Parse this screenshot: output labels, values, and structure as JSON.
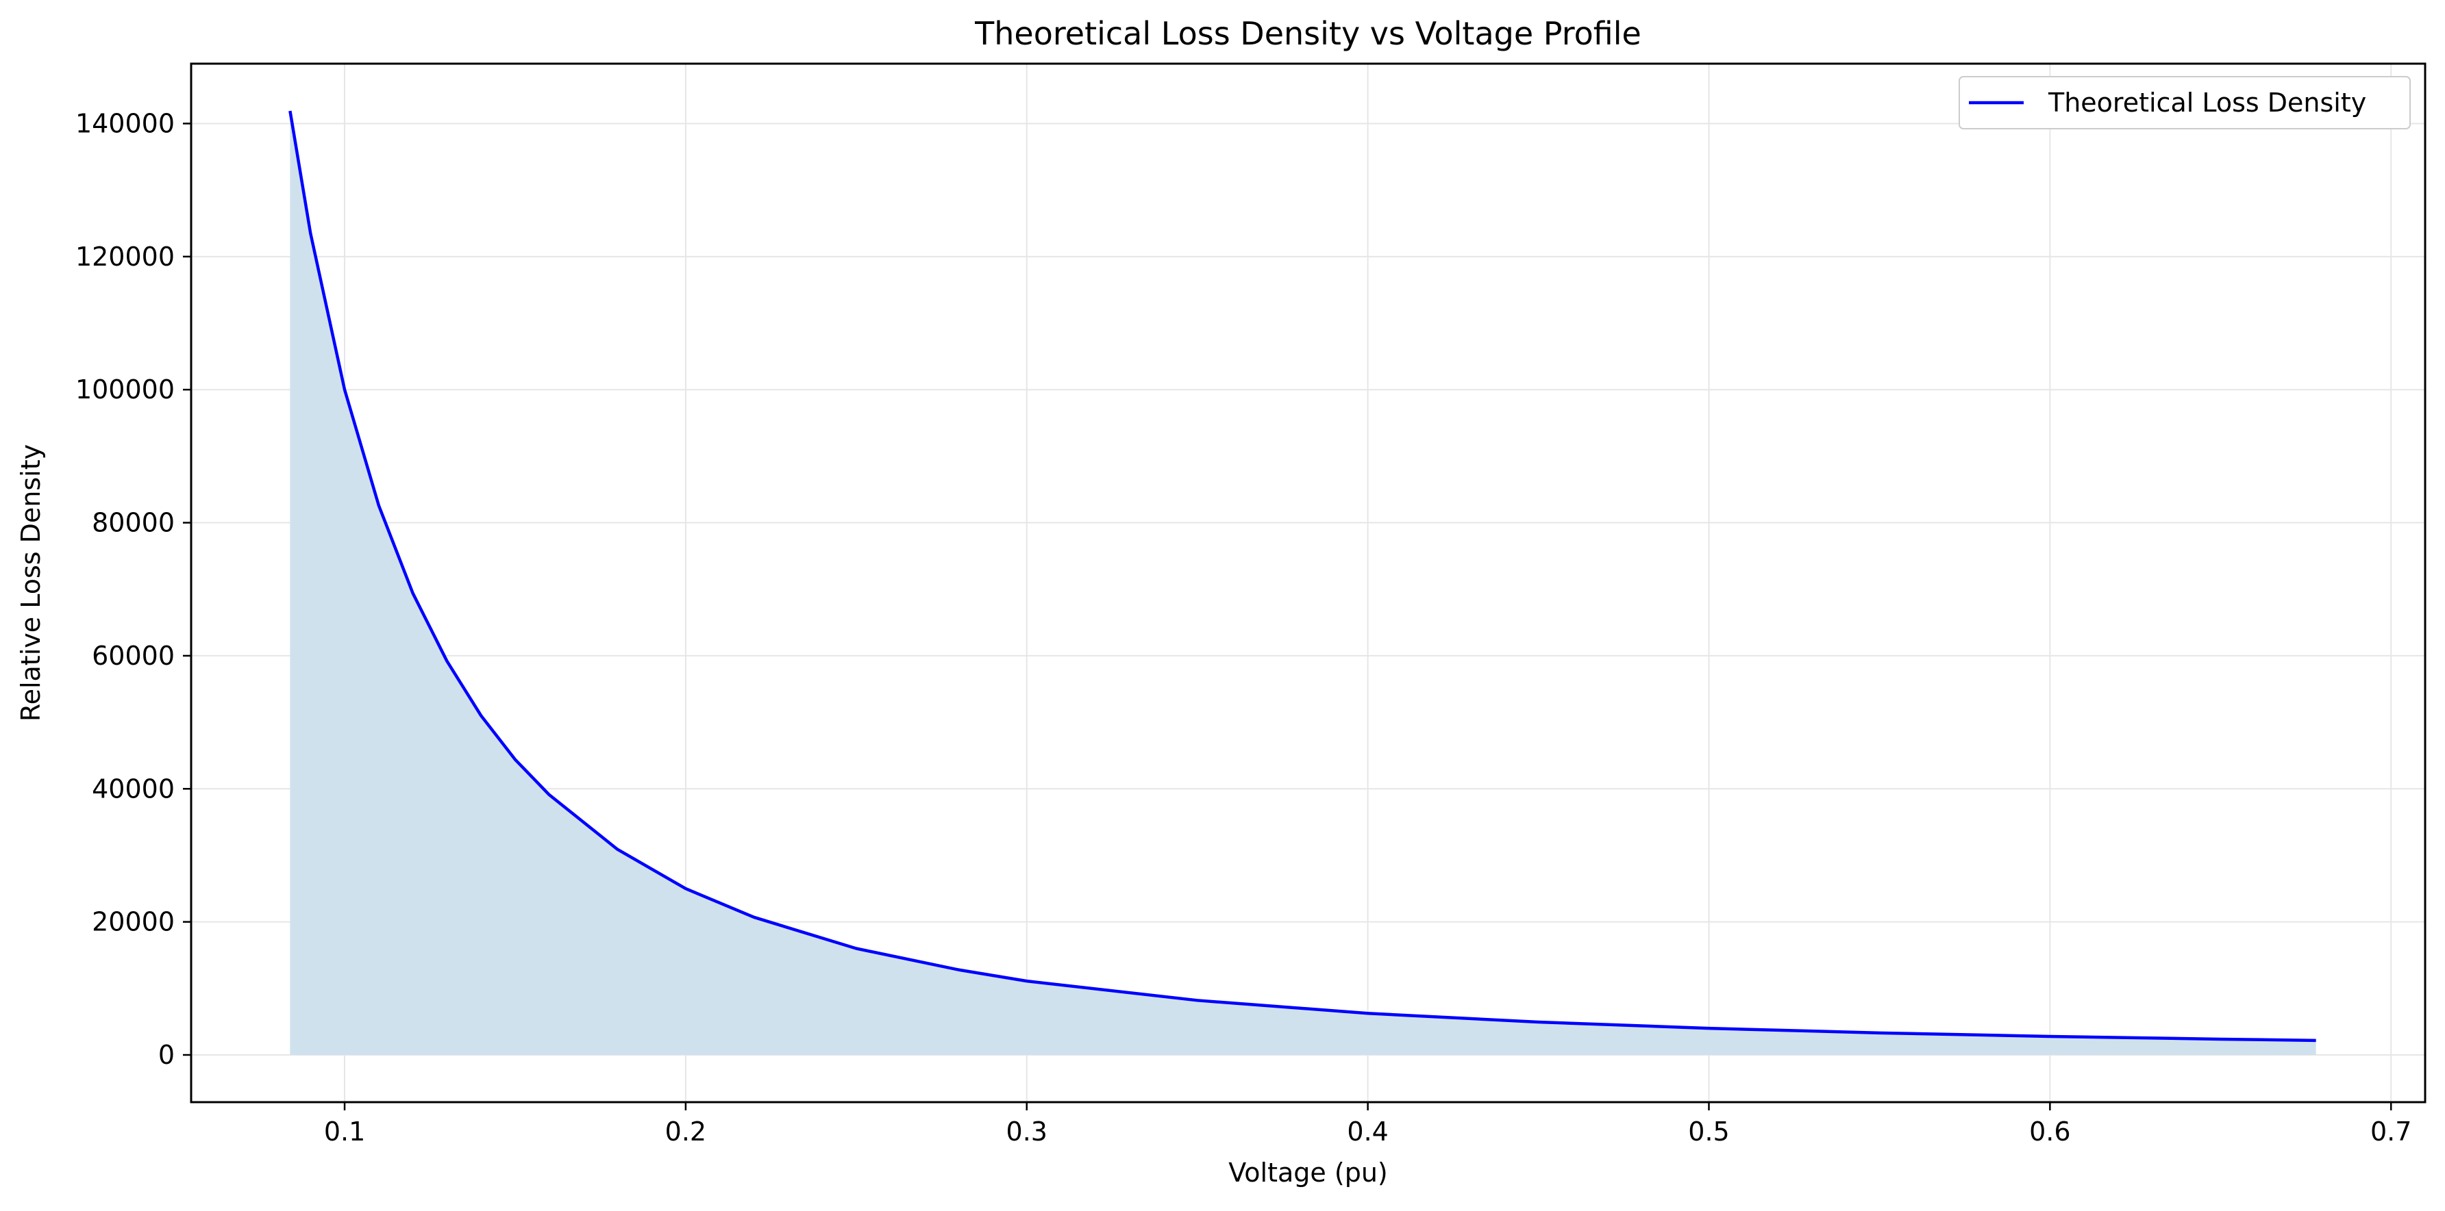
{
  "chart_data": {
    "type": "area",
    "title": "Theoretical Loss Density vs Voltage Profile",
    "xlabel": "Voltage (pu)",
    "ylabel": "Relative Loss Density",
    "xlim": [
      0.055,
      0.71
    ],
    "ylim": [
      -7100,
      149000
    ],
    "x_ticks": [
      0.1,
      0.2,
      0.3,
      0.4,
      0.5,
      0.6,
      0.7
    ],
    "x_tick_labels": [
      "0.1",
      "0.2",
      "0.3",
      "0.4",
      "0.5",
      "0.6",
      "0.7"
    ],
    "y_ticks": [
      0,
      20000,
      40000,
      60000,
      80000,
      100000,
      120000,
      140000
    ],
    "y_tick_labels": [
      "0",
      "20000",
      "40000",
      "60000",
      "80000",
      "100000",
      "120000",
      "140000"
    ],
    "grid": true,
    "legend": {
      "position": "top-right",
      "entries": [
        "Theoretical Loss Density"
      ]
    },
    "series": [
      {
        "name": "Theoretical Loss Density",
        "line_color": "#0000ff",
        "fill_color": "#d0e1ee",
        "x": [
          0.084,
          0.09,
          0.1,
          0.11,
          0.12,
          0.13,
          0.14,
          0.15,
          0.16,
          0.18,
          0.2,
          0.22,
          0.25,
          0.28,
          0.3,
          0.35,
          0.4,
          0.45,
          0.5,
          0.55,
          0.6,
          0.65,
          0.678
        ],
        "y": [
          141900,
          123500,
          100000,
          82600,
          69400,
          59200,
          51000,
          44400,
          39100,
          30900,
          25000,
          20700,
          16000,
          12800,
          11100,
          8200,
          6250,
          4940,
          4000,
          3310,
          2780,
          2370,
          2180
        ]
      }
    ]
  }
}
